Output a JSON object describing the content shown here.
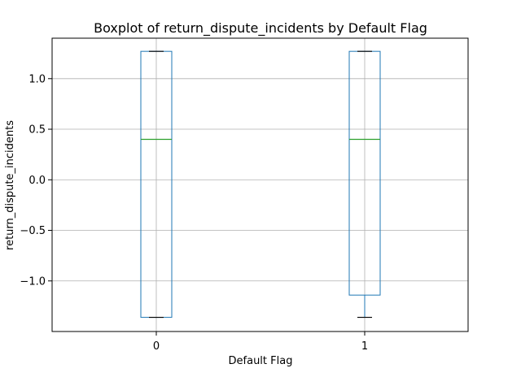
{
  "chart_data": {
    "type": "boxplot",
    "title": "Boxplot of return_dispute_incidents by Default Flag",
    "xlabel": "Default Flag",
    "ylabel": "return_dispute_incidents",
    "categories": [
      "0",
      "1"
    ],
    "boxes": [
      {
        "category": "0",
        "whisker_low": -1.36,
        "q1": -1.36,
        "median": 0.4,
        "q3": 1.27,
        "whisker_high": 1.27
      },
      {
        "category": "1",
        "whisker_low": -1.36,
        "q1": -1.14,
        "median": 0.4,
        "q3": 1.27,
        "whisker_high": 1.27
      }
    ],
    "ylim": [
      -1.5,
      1.4
    ],
    "yticks": [
      -1.0,
      -0.5,
      0.0,
      0.5,
      1.0
    ],
    "ytick_labels": [
      "−1.0",
      "−0.5",
      "0.0",
      "0.5",
      "1.0"
    ],
    "grid": true,
    "colors": {
      "box": "#1f77b4",
      "median": "#2ca02c",
      "whisker_cap": "#000000",
      "grid": "#b0b0b0",
      "axis": "#000000"
    }
  }
}
